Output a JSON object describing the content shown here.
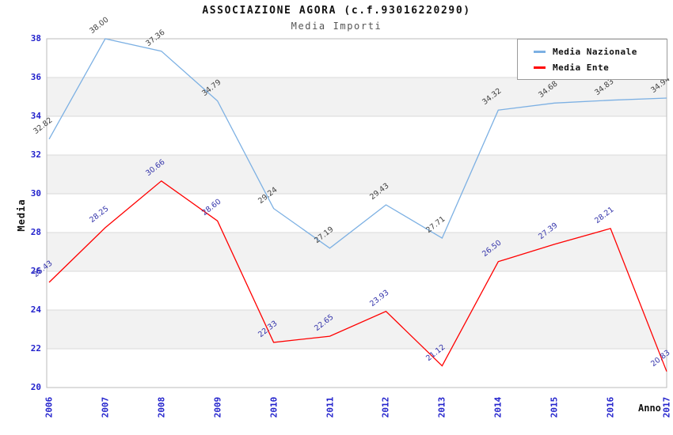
{
  "header": {
    "title": "ASSOCIAZIONE AGORA (c.f.93016220290)",
    "subtitle": "Media Importi"
  },
  "chart_data": {
    "type": "line",
    "title": "ASSOCIAZIONE AGORA (c.f.93016220290)",
    "subtitle": "Media Importi",
    "xlabel": "Anno",
    "ylabel": "Media",
    "categories": [
      "2006",
      "2007",
      "2008",
      "2009",
      "2010",
      "2011",
      "2012",
      "2013",
      "2014",
      "2015",
      "2016",
      "2017"
    ],
    "series": [
      {
        "name": "Media Nazionale",
        "color": "#7cb0e3",
        "label_color": "#404040",
        "values": [
          32.82,
          38.0,
          37.36,
          34.79,
          29.24,
          27.19,
          29.43,
          27.71,
          34.32,
          34.68,
          34.83,
          34.94
        ]
      },
      {
        "name": "Media Ente",
        "color": "#ff0000",
        "label_color": "#3333aa",
        "values": [
          25.43,
          28.25,
          30.66,
          28.6,
          22.33,
          22.65,
          23.93,
          21.12,
          26.5,
          27.39,
          28.21,
          20.83
        ]
      }
    ],
    "ylim": [
      20,
      38
    ],
    "ytick_step": 2,
    "yticks": [
      "20",
      "22",
      "24",
      "26",
      "28",
      "30",
      "32",
      "34",
      "36",
      "38"
    ],
    "grid": true,
    "band_color": "#f2f2f2",
    "gridline_color": "#d9d9d9",
    "plot_border_color": "#bbbbbb",
    "tick_label_color": "#2222cc",
    "legend_position": "top-right"
  },
  "legend": {
    "items": [
      {
        "label": "Media Nazionale",
        "color": "#7cb0e3"
      },
      {
        "label": "Media Ente",
        "color": "#ff0000"
      }
    ]
  }
}
